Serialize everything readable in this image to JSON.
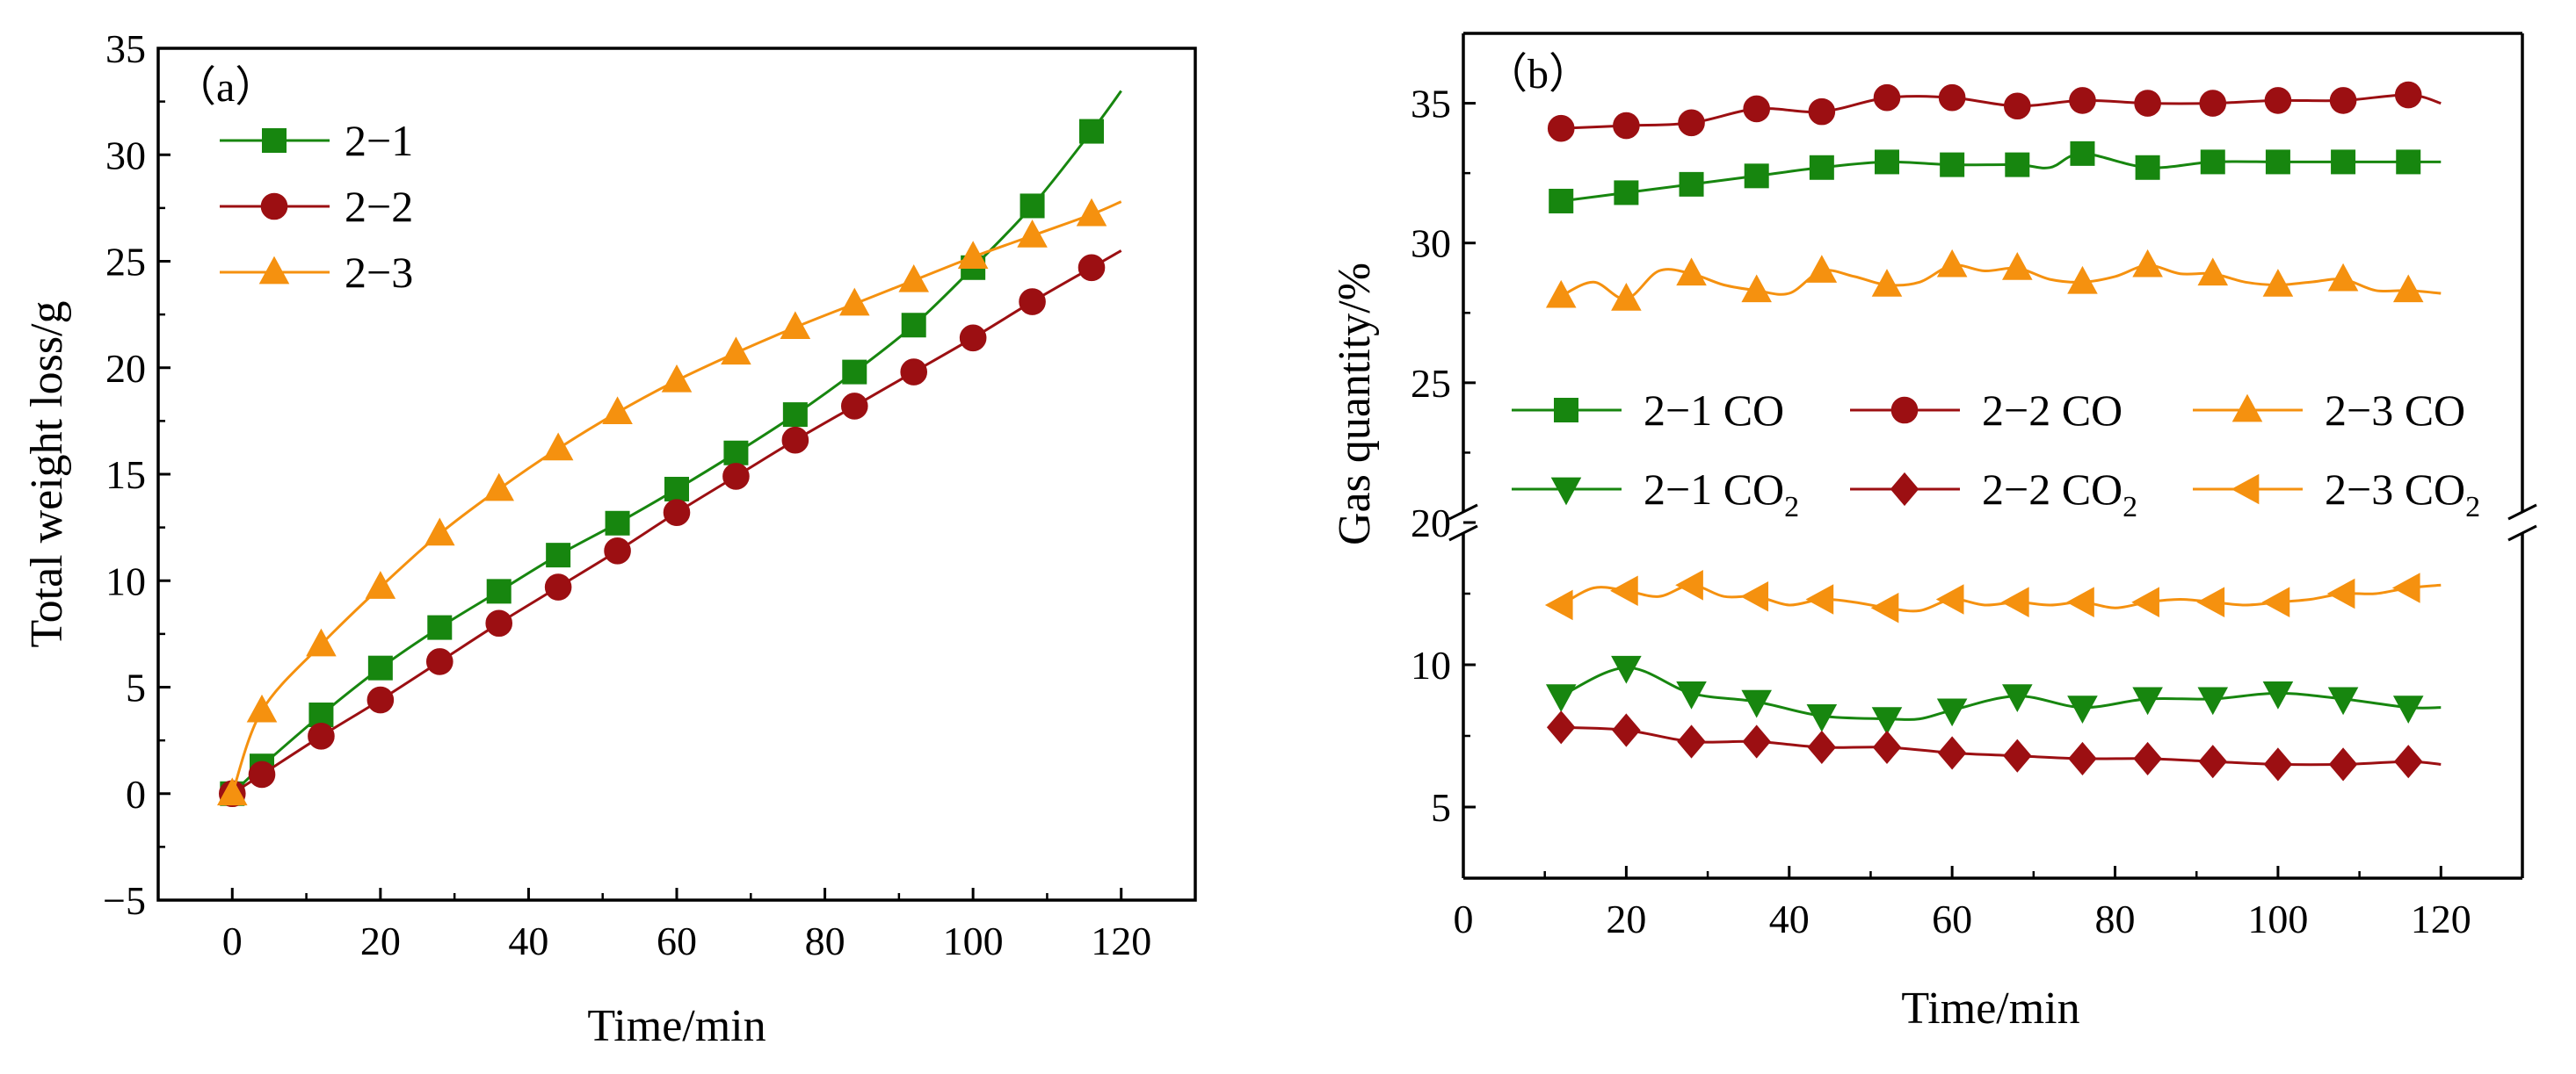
{
  "chart_data": [
    {
      "type": "line",
      "panel_label": "（a）",
      "xlabel": "Time/min",
      "ylabel": "Total weight loss/g",
      "xlim": [
        -10,
        130
      ],
      "ylim": [
        -5,
        35
      ],
      "xticks": [
        0,
        20,
        40,
        60,
        80,
        100,
        120
      ],
      "yticks": [
        -5,
        0,
        5,
        10,
        15,
        20,
        25,
        30,
        35
      ],
      "legend_position": "top-left",
      "series": [
        {
          "name": "2−1",
          "color": "#17860f",
          "marker": "square",
          "x": [
            0,
            4,
            12,
            20,
            28,
            36,
            44,
            52,
            60,
            68,
            76,
            84,
            92,
            100,
            108,
            116,
            120
          ],
          "y": [
            0,
            1.3,
            3.7,
            5.9,
            7.8,
            9.5,
            11.2,
            12.7,
            14.3,
            16.0,
            17.8,
            19.8,
            22.0,
            24.7,
            27.6,
            31.1,
            33.0
          ],
          "marker_x": [
            0,
            4,
            12,
            20,
            28,
            36,
            44,
            52,
            60,
            68,
            76,
            84,
            92,
            100,
            108,
            116
          ],
          "marker_y": [
            0,
            1.3,
            3.7,
            5.9,
            7.8,
            9.5,
            11.2,
            12.7,
            14.3,
            16.0,
            17.8,
            19.8,
            22.0,
            24.7,
            27.6,
            31.1
          ]
        },
        {
          "name": "2−2",
          "color": "#9c0f12",
          "marker": "circle",
          "x": [
            0,
            4,
            12,
            20,
            28,
            36,
            44,
            52,
            60,
            68,
            76,
            84,
            92,
            100,
            108,
            116,
            120
          ],
          "y": [
            0,
            0.9,
            2.7,
            4.4,
            6.2,
            8.0,
            9.7,
            11.4,
            13.2,
            14.9,
            16.6,
            18.2,
            19.8,
            21.4,
            23.1,
            24.7,
            25.5
          ],
          "marker_x": [
            0,
            4,
            12,
            20,
            28,
            36,
            44,
            52,
            60,
            68,
            76,
            84,
            92,
            100,
            108,
            116
          ],
          "marker_y": [
            0,
            0.9,
            2.7,
            4.4,
            6.2,
            8.0,
            9.7,
            11.4,
            13.2,
            14.9,
            16.6,
            18.2,
            19.8,
            21.4,
            23.1,
            24.7
          ]
        },
        {
          "name": "2−3",
          "color": "#f5910f",
          "marker": "triangle-up",
          "x": [
            0,
            4,
            12,
            20,
            28,
            36,
            44,
            52,
            60,
            68,
            76,
            84,
            92,
            100,
            108,
            116,
            120
          ],
          "y": [
            0,
            3.9,
            7.0,
            9.7,
            12.2,
            14.3,
            16.2,
            17.9,
            19.4,
            20.7,
            21.9,
            23.0,
            24.1,
            25.2,
            26.2,
            27.2,
            27.8
          ],
          "marker_x": [
            0,
            4,
            12,
            20,
            28,
            36,
            44,
            52,
            60,
            68,
            76,
            84,
            92,
            100,
            108,
            116
          ],
          "marker_y": [
            0,
            3.9,
            7.0,
            9.7,
            12.2,
            14.3,
            16.2,
            17.9,
            19.4,
            20.7,
            21.9,
            23.0,
            24.1,
            25.2,
            26.2,
            27.2
          ]
        }
      ]
    },
    {
      "type": "line",
      "panel_label": "（b）",
      "xlabel": "Time/min",
      "ylabel": "Gas quantity/%",
      "xlim": [
        0,
        130
      ],
      "axis_break": true,
      "ylim_upper": [
        20,
        37.5
      ],
      "ylim_lower": [
        2.5,
        15
      ],
      "yticks_upper": [
        20,
        25,
        30,
        35
      ],
      "yticks_lower": [
        5,
        10
      ],
      "xticks": [
        0,
        20,
        40,
        60,
        80,
        100,
        120
      ],
      "legend_position": "middle",
      "series": [
        {
          "name": "2−1 CO",
          "gas": "CO",
          "color": "#17860f",
          "marker": "square",
          "segment": "upper",
          "x": [
            12,
            20,
            28,
            36,
            44,
            52,
            60,
            68,
            72,
            76,
            84,
            92,
            100,
            108,
            116,
            120
          ],
          "y": [
            31.5,
            31.8,
            32.1,
            32.4,
            32.7,
            32.9,
            32.8,
            32.8,
            32.7,
            33.2,
            32.7,
            32.9,
            32.9,
            32.9,
            32.9,
            32.9
          ],
          "marker_x": [
            12,
            20,
            28,
            36,
            44,
            52,
            60,
            68,
            76,
            84,
            92,
            100,
            108,
            116
          ],
          "marker_y": [
            31.5,
            31.8,
            32.1,
            32.4,
            32.7,
            32.9,
            32.8,
            32.8,
            33.2,
            32.7,
            32.9,
            32.9,
            32.9,
            32.9
          ]
        },
        {
          "name": "2−2 CO",
          "gas": "CO",
          "color": "#9c0f12",
          "marker": "circle",
          "segment": "upper",
          "x": [
            12,
            20,
            28,
            36,
            44,
            52,
            60,
            68,
            76,
            84,
            92,
            100,
            108,
            116,
            120
          ],
          "y": [
            34.1,
            34.2,
            34.3,
            34.8,
            34.7,
            35.2,
            35.2,
            34.9,
            35.1,
            35.0,
            35.0,
            35.1,
            35.1,
            35.3,
            35.0
          ],
          "marker_x": [
            12,
            20,
            28,
            36,
            44,
            52,
            60,
            68,
            76,
            84,
            92,
            100,
            108,
            116
          ],
          "marker_y": [
            34.1,
            34.2,
            34.3,
            34.8,
            34.7,
            35.2,
            35.2,
            34.9,
            35.1,
            35.0,
            35.0,
            35.1,
            35.1,
            35.3
          ]
        },
        {
          "name": "2−3 CO",
          "gas": "CO",
          "color": "#f5910f",
          "marker": "triangle-up",
          "segment": "upper",
          "x": [
            12,
            16,
            20,
            24,
            28,
            32,
            36,
            40,
            44,
            48,
            52,
            56,
            60,
            64,
            68,
            72,
            76,
            80,
            84,
            88,
            92,
            96,
            100,
            104,
            108,
            112,
            116,
            120
          ],
          "y": [
            28.1,
            28.6,
            28.0,
            29.0,
            28.9,
            28.5,
            28.3,
            28.2,
            29.0,
            28.8,
            28.5,
            28.6,
            29.2,
            29.0,
            29.1,
            28.7,
            28.6,
            28.8,
            29.2,
            28.9,
            28.9,
            28.6,
            28.5,
            28.6,
            28.7,
            28.3,
            28.3,
            28.2
          ],
          "marker_x": [
            12,
            20,
            28,
            36,
            44,
            52,
            60,
            68,
            76,
            84,
            92,
            100,
            108,
            116
          ],
          "marker_y": [
            28.1,
            28.0,
            28.9,
            28.3,
            29.0,
            28.5,
            29.2,
            29.1,
            28.6,
            29.2,
            28.9,
            28.5,
            28.7,
            28.3
          ]
        },
        {
          "name": "2−1 CO2",
          "legend_main": "2−1 CO",
          "legend_sub": "2",
          "gas": "CO2",
          "color": "#17860f",
          "marker": "triangle-down",
          "segment": "lower",
          "x": [
            12,
            20,
            28,
            36,
            44,
            52,
            56,
            60,
            68,
            76,
            84,
            92,
            100,
            108,
            116,
            120
          ],
          "y": [
            8.9,
            9.9,
            9.0,
            8.7,
            8.2,
            8.1,
            8.1,
            8.4,
            8.9,
            8.5,
            8.8,
            8.8,
            9.0,
            8.8,
            8.5,
            8.5
          ],
          "marker_x": [
            12,
            20,
            28,
            36,
            44,
            52,
            60,
            68,
            76,
            84,
            92,
            100,
            108,
            116
          ],
          "marker_y": [
            8.9,
            9.9,
            9.0,
            8.7,
            8.2,
            8.1,
            8.4,
            8.9,
            8.5,
            8.8,
            8.8,
            9.0,
            8.8,
            8.5
          ]
        },
        {
          "name": "2−2 CO2",
          "legend_main": "2−2 CO",
          "legend_sub": "2",
          "gas": "CO2",
          "color": "#9c0f12",
          "marker": "diamond",
          "segment": "lower",
          "x": [
            12,
            20,
            28,
            36,
            44,
            52,
            60,
            68,
            76,
            84,
            92,
            100,
            108,
            116,
            120
          ],
          "y": [
            7.8,
            7.7,
            7.3,
            7.3,
            7.1,
            7.1,
            6.9,
            6.8,
            6.7,
            6.7,
            6.6,
            6.5,
            6.5,
            6.6,
            6.5
          ],
          "marker_x": [
            12,
            20,
            28,
            36,
            44,
            52,
            60,
            68,
            76,
            84,
            92,
            100,
            108,
            116
          ],
          "marker_y": [
            7.8,
            7.7,
            7.3,
            7.3,
            7.1,
            7.1,
            6.9,
            6.8,
            6.7,
            6.7,
            6.6,
            6.5,
            6.5,
            6.6
          ]
        },
        {
          "name": "2−3 CO2",
          "legend_main": "2−3 CO",
          "legend_sub": "2",
          "gas": "CO2",
          "color": "#f5910f",
          "marker": "triangle-left",
          "segment": "lower",
          "x": [
            12,
            16,
            20,
            24,
            28,
            32,
            36,
            40,
            44,
            48,
            52,
            56,
            60,
            64,
            68,
            72,
            76,
            80,
            84,
            88,
            92,
            96,
            100,
            104,
            108,
            112,
            116,
            120
          ],
          "y": [
            12.1,
            12.7,
            12.6,
            12.4,
            12.8,
            12.4,
            12.4,
            12.1,
            12.3,
            12.2,
            12.0,
            11.9,
            12.3,
            12.1,
            12.2,
            12.1,
            12.2,
            12.0,
            12.2,
            12.3,
            12.2,
            12.1,
            12.2,
            12.3,
            12.5,
            12.5,
            12.7,
            12.8
          ],
          "marker_x": [
            12,
            20,
            28,
            36,
            44,
            52,
            60,
            68,
            76,
            84,
            92,
            100,
            108,
            116
          ],
          "marker_y": [
            12.1,
            12.6,
            12.8,
            12.4,
            12.3,
            12.0,
            12.3,
            12.2,
            12.2,
            12.2,
            12.2,
            12.2,
            12.5,
            12.7
          ]
        }
      ]
    }
  ]
}
